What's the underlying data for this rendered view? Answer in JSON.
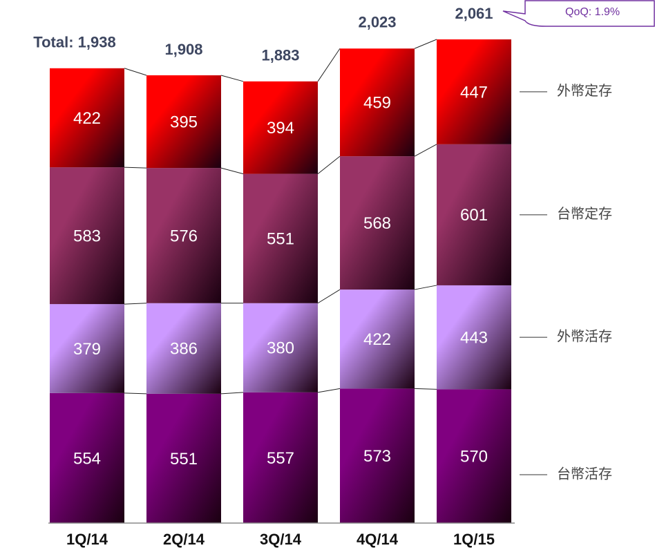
{
  "chart_data": {
    "type": "stacked_bar",
    "categories": [
      "1Q/14",
      "2Q/14",
      "3Q/14",
      "4Q/14",
      "1Q/15"
    ],
    "series": [
      {
        "name": "台幣活存",
        "color": "#800080",
        "values": [
          554,
          551,
          557,
          573,
          570
        ]
      },
      {
        "name": "外幣活存",
        "color": "#cc99ff",
        "values": [
          379,
          386,
          380,
          422,
          443
        ]
      },
      {
        "name": "台幣定存",
        "color": "#993366",
        "values": [
          583,
          576,
          551,
          568,
          601
        ]
      },
      {
        "name": "外幣定存",
        "color": "#ff0000",
        "values": [
          422,
          395,
          394,
          459,
          447
        ]
      }
    ],
    "totals": [
      1938,
      1908,
      1883,
      2023,
      2061
    ],
    "total_labels": [
      "Total: 1,938",
      "1,908",
      "1,883",
      "2,023",
      "2,061"
    ],
    "annotation": "QoQ: 1.9%"
  }
}
